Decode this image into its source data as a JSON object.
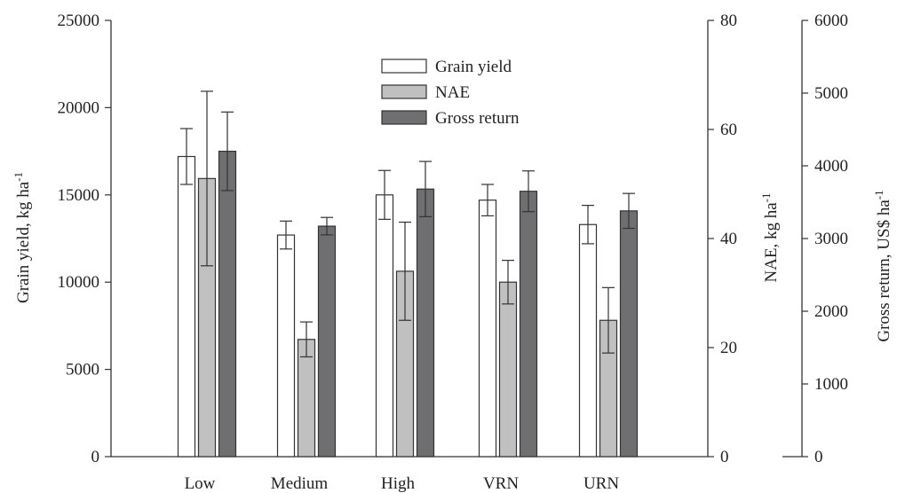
{
  "chart_data": {
    "type": "bar",
    "categories": [
      "Low",
      "Medium",
      "High",
      "VRN",
      "URN"
    ],
    "series": [
      {
        "name": "Grain yield",
        "axis": "left",
        "color": "#ffffff",
        "values": [
          17200,
          12700,
          15000,
          14700,
          13300
        ],
        "errors": [
          1600,
          800,
          1400,
          900,
          1100
        ]
      },
      {
        "name": "NAE",
        "axis": "nae",
        "color": "#c0c0c0",
        "values": [
          51,
          21.5,
          34,
          32,
          25
        ],
        "errors": [
          16,
          3.2,
          9,
          4,
          6
        ]
      },
      {
        "name": "Gross return",
        "axis": "gross",
        "color": "#6f6f72",
        "values": [
          4200,
          3170,
          3680,
          3650,
          3380
        ],
        "errors": [
          540,
          120,
          380,
          280,
          240
        ]
      }
    ],
    "axes": {
      "left": {
        "label": "Grain yield, kg ha",
        "label_sup": "-1",
        "ylim": [
          0,
          25000
        ],
        "ticks": [
          0,
          5000,
          10000,
          15000,
          20000,
          25000
        ]
      },
      "nae": {
        "label": "NAE, kg ha",
        "label_sup": "-1",
        "ylim": [
          0,
          80
        ],
        "ticks": [
          0,
          20,
          40,
          60,
          80
        ]
      },
      "gross": {
        "label": "Gross return, US$ ha",
        "label_sup": "-1",
        "ylim": [
          0,
          6000
        ],
        "ticks": [
          0,
          1000,
          2000,
          3000,
          4000,
          5000,
          6000
        ]
      }
    },
    "legend": {
      "position": "top-center"
    }
  }
}
